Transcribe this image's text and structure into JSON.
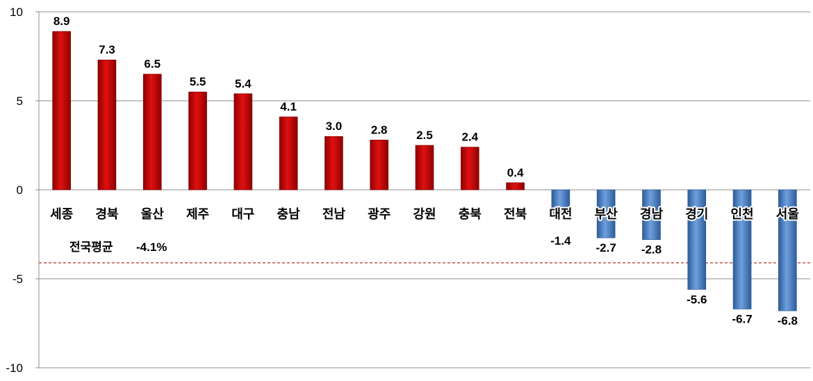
{
  "chart_data": {
    "type": "bar",
    "title": "",
    "xlabel": "",
    "ylabel": "",
    "ylim": [
      -10,
      10
    ],
    "yticks": [
      10,
      5,
      0,
      -5,
      -10
    ],
    "grid": true,
    "categories": [
      "세종",
      "경북",
      "울산",
      "제주",
      "대구",
      "충남",
      "전남",
      "광주",
      "강원",
      "충북",
      "전북",
      "대전",
      "부산",
      "경남",
      "경기",
      "인천",
      "서울"
    ],
    "values": [
      8.9,
      7.3,
      6.5,
      5.5,
      5.4,
      4.1,
      3.0,
      2.8,
      2.5,
      2.4,
      0.4,
      -1.4,
      -2.7,
      -2.8,
      -5.6,
      -6.7,
      -6.8
    ],
    "value_labels": [
      "8.9",
      "7.3",
      "6.5",
      "5.5",
      "5.4",
      "4.1",
      "3.0",
      "2.8",
      "2.5",
      "2.4",
      "0.4",
      "-1.4",
      "-2.7",
      "-2.8",
      "-5.6",
      "-6.7",
      "-6.8"
    ],
    "colors": {
      "positive": "#cc0000",
      "negative": "#4a7ebb",
      "reference": "#c0504d"
    },
    "reference_line": {
      "value": -4.1,
      "label": "전국평균",
      "value_label": "-4.1%"
    }
  }
}
